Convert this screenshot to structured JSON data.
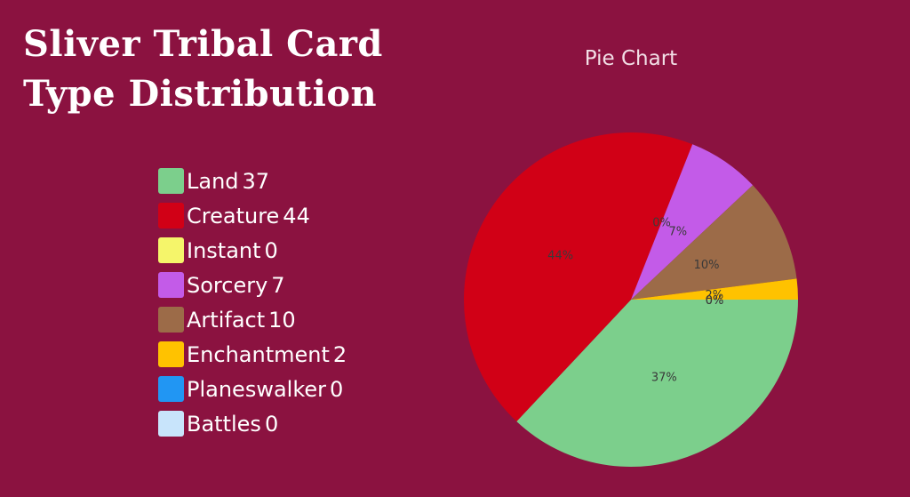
{
  "page": {
    "title": "Sliver Tribal Card Type Distribution"
  },
  "legend": [
    {
      "label": "Land",
      "value": "37"
    },
    {
      "label": "Creature",
      "value": "44"
    },
    {
      "label": "Instant",
      "value": "0"
    },
    {
      "label": "Sorcery",
      "value": "7"
    },
    {
      "label": "Artifact",
      "value": "10"
    },
    {
      "label": "Enchantment",
      "value": "2"
    },
    {
      "label": "Planeswalker",
      "value": "0"
    },
    {
      "label": "Battles",
      "value": "0"
    }
  ],
  "chart_data": {
    "type": "pie",
    "title": "Pie Chart",
    "categories": [
      "Land",
      "Creature",
      "Instant",
      "Sorcery",
      "Artifact",
      "Enchantment",
      "Planeswalker",
      "Battles"
    ],
    "values": [
      37,
      44,
      0,
      7,
      10,
      2,
      0,
      0
    ],
    "slice_labels": [
      "37%",
      "44%",
      "0%",
      "7%",
      "10%",
      "2%",
      "0%",
      "0%"
    ],
    "colors": [
      "#7ccf8c",
      "#d10016",
      "#f5f56a",
      "#c35be8",
      "#9c6b48",
      "#ffc200",
      "#2196f3",
      "#c8e4fb"
    ]
  }
}
